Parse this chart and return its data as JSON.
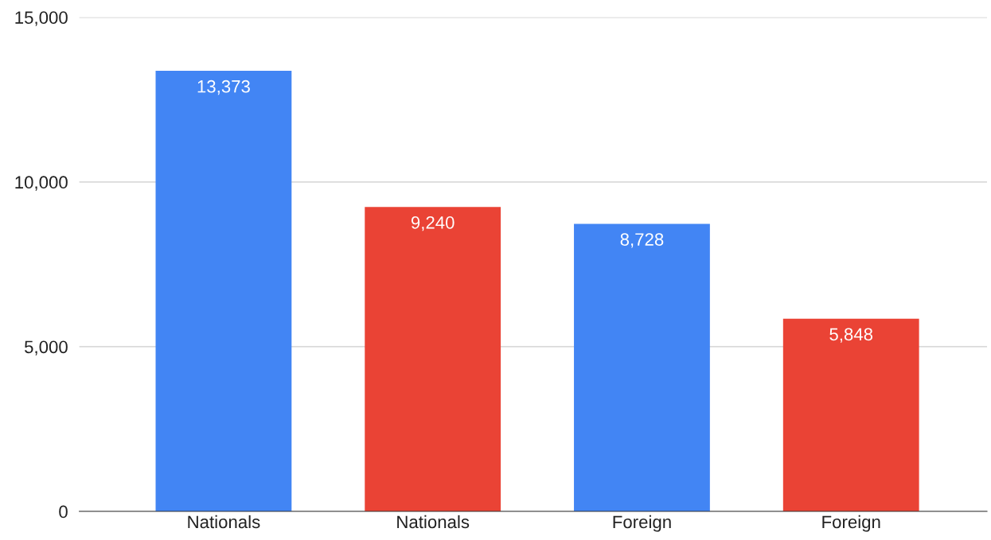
{
  "chart_data": {
    "type": "bar",
    "categories": [
      "Nationals",
      "Nationals",
      "Foreign",
      "Foreign"
    ],
    "values": [
      13373,
      9240,
      8728,
      5848
    ],
    "colors": [
      "#4285f4",
      "#ea4335",
      "#4285f4",
      "#ea4335"
    ],
    "value_labels": [
      "13,373",
      "9,240",
      "8,728",
      "5,848"
    ],
    "ylim": [
      0,
      15000
    ],
    "yticks": [
      0,
      {
        "value": 5000,
        "label": "5,000"
      },
      {
        "value": 10000,
        "label": "10,000"
      },
      {
        "value": 15000,
        "label": "15,000"
      }
    ],
    "grid": "y"
  }
}
